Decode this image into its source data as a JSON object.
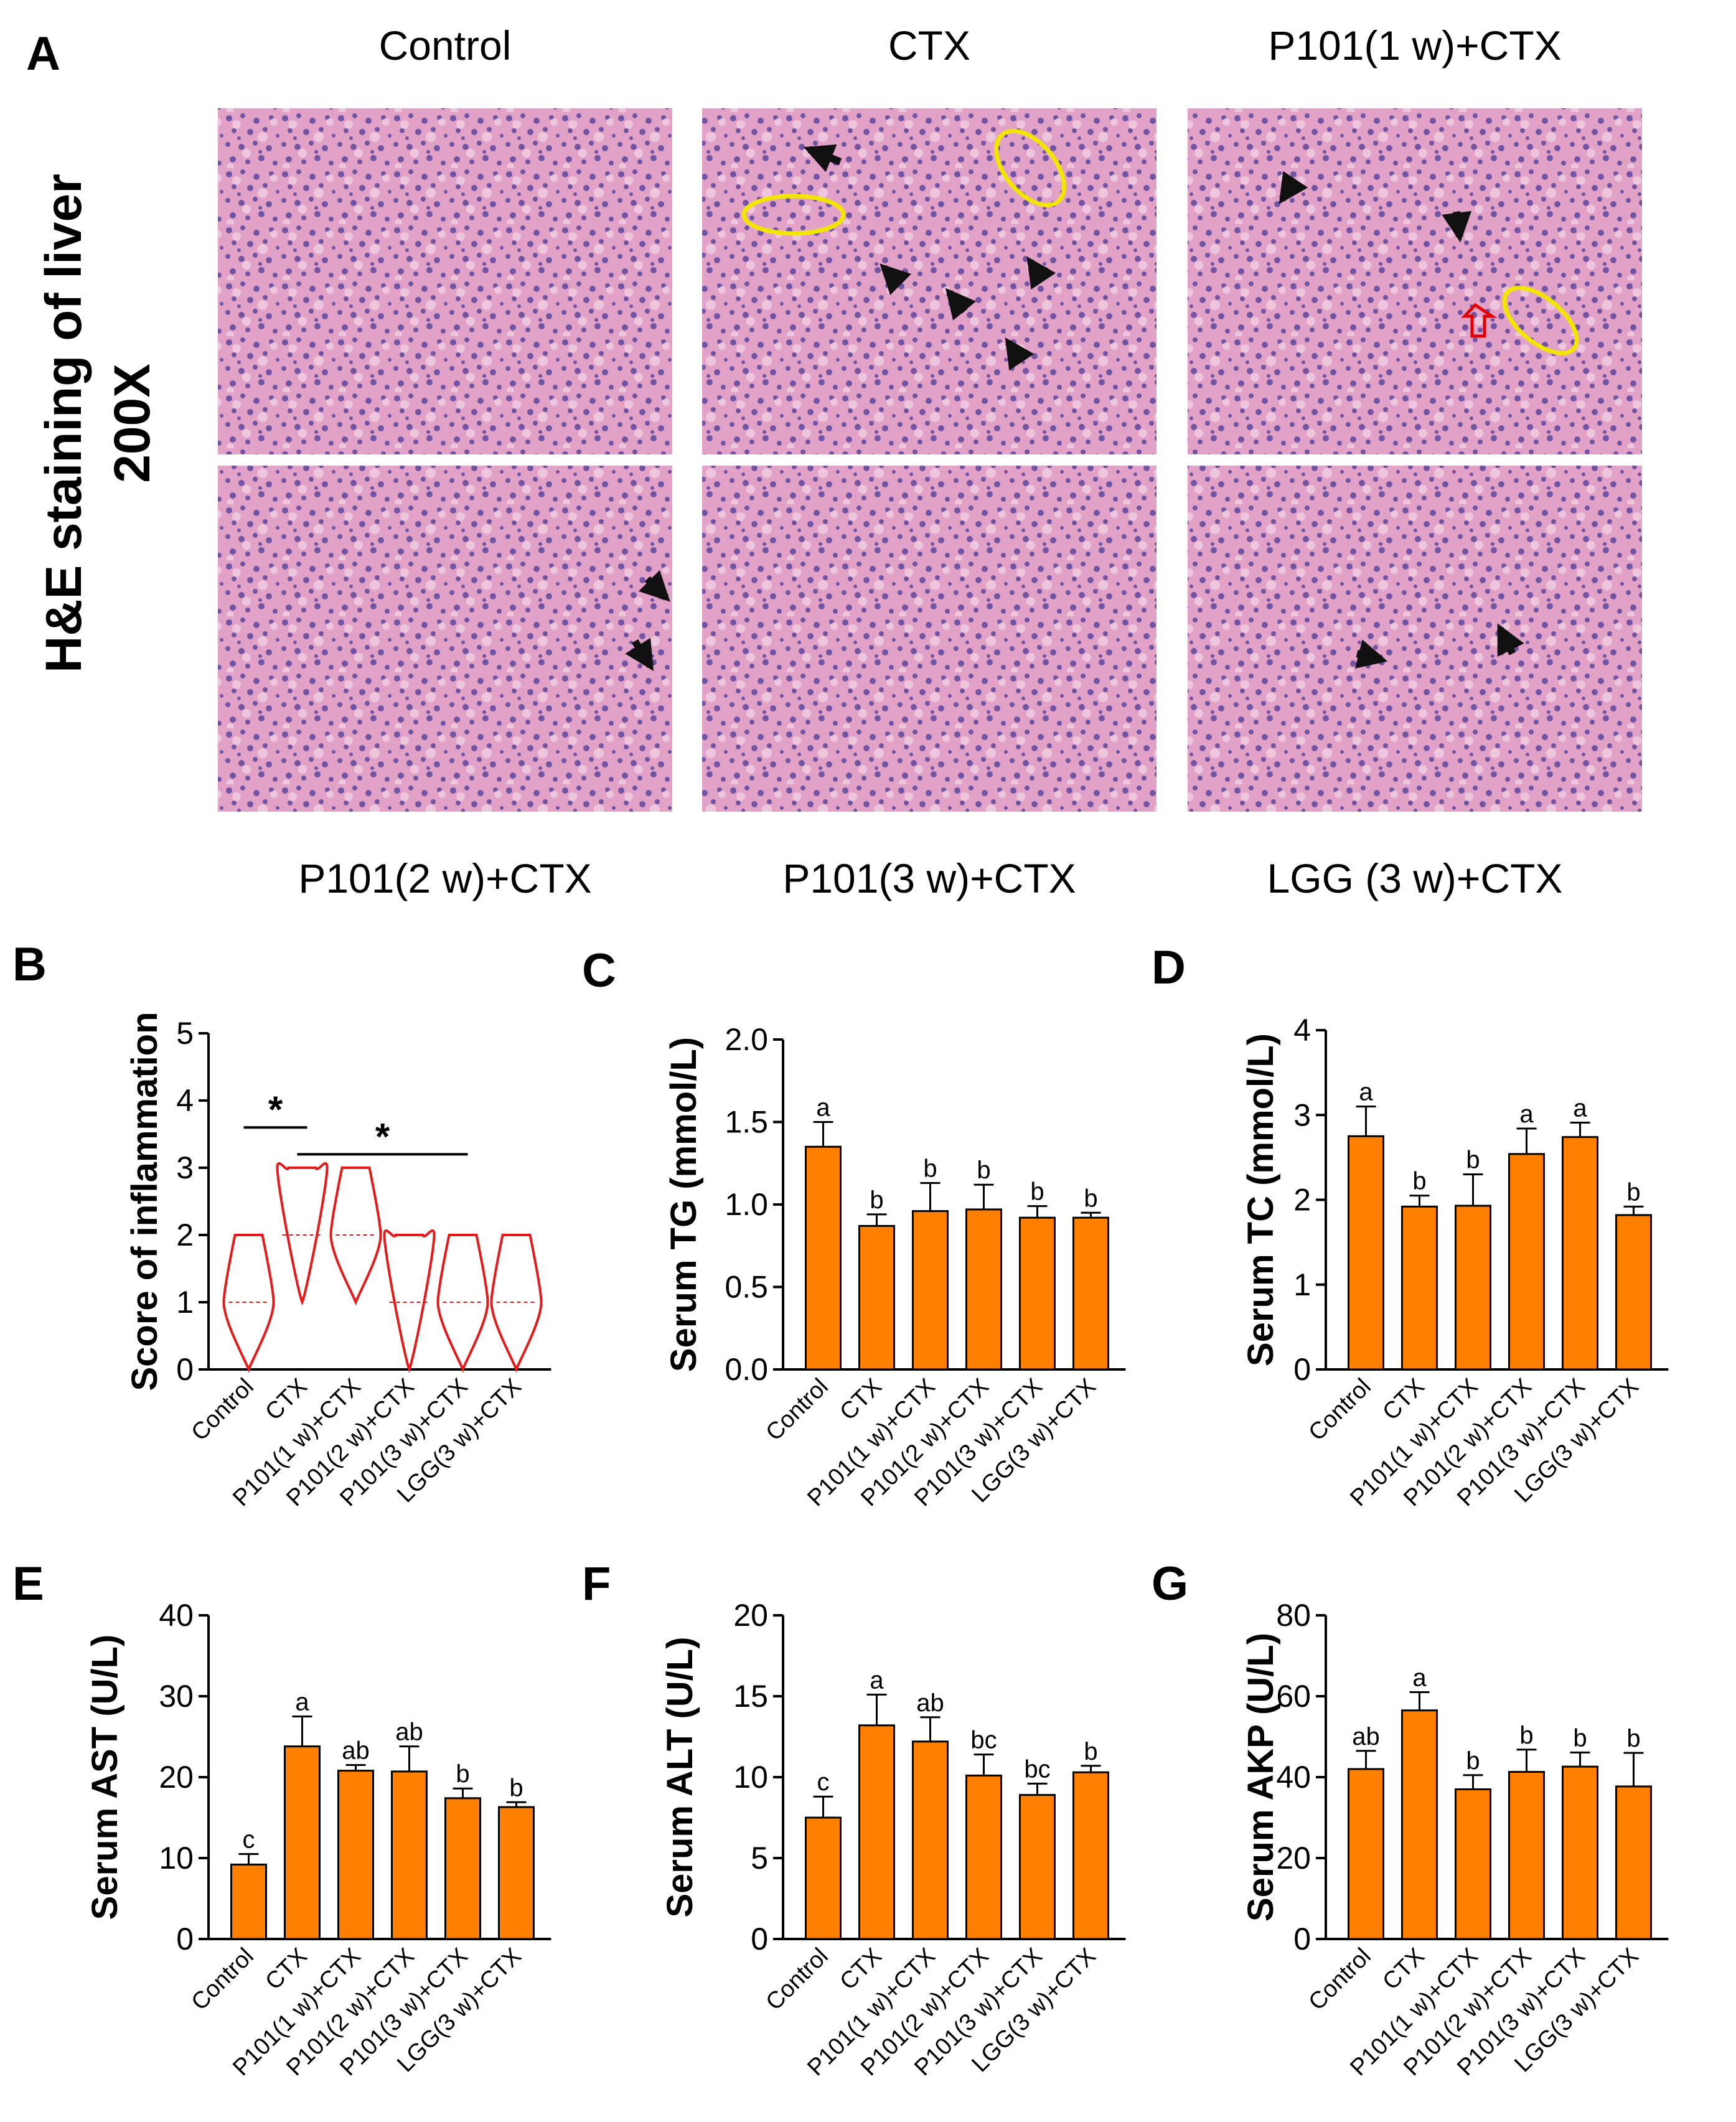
{
  "colors": {
    "bar": "#ff8000",
    "bar_stroke": "#000000",
    "violin": "#e51a1a",
    "arrow": "#111111",
    "circle": "#f2e600",
    "tissue_base": "#e2a2c8",
    "tissue_nuclei": "#4a3a95",
    "open_arrow": "#e00000"
  },
  "histology": {
    "panel_letter": "A",
    "side_title_line1": "H&E  staining of liver",
    "side_title_line2": "200X",
    "images": [
      {
        "title": "Control",
        "marks": {
          "arrows": [],
          "circles": [],
          "red_arrows": []
        }
      },
      {
        "title": "CTX",
        "marks": {
          "arrows": [
            "a1",
            "a2",
            "a3",
            "a4",
            "a5"
          ],
          "circles": [
            "c1",
            "c2"
          ],
          "red_arrows": []
        }
      },
      {
        "title": "P101(1 w)+CTX",
        "marks": {
          "arrows": [
            "a1",
            "a2"
          ],
          "circles": [
            "c1"
          ],
          "red_arrows": [
            "r1"
          ]
        }
      },
      {
        "title": "P101(2 w)+CTX",
        "marks": {
          "arrows": [
            "a1",
            "a2"
          ],
          "circles": [],
          "red_arrows": []
        }
      },
      {
        "title": "P101(3 w)+CTX",
        "marks": {
          "arrows": [],
          "circles": [],
          "red_arrows": []
        }
      },
      {
        "title": "LGG (3 w)+CTX",
        "marks": {
          "arrows": [
            "a1",
            "a2"
          ],
          "circles": [],
          "red_arrows": []
        }
      }
    ]
  },
  "chart_data": [
    {
      "panel": "B",
      "type": "violin",
      "ylabel": "Score of inflammation",
      "ylim": [
        0,
        5
      ],
      "yticks": [
        0,
        1,
        2,
        3,
        4,
        5
      ],
      "categories": [
        "Control",
        "CTX",
        "P101(1 w)+CTX",
        "P101(2 w)+CTX",
        "P101(3 w)+CTX",
        "LGG(3 w)+CTX"
      ],
      "violins": [
        {
          "min": 0,
          "max": 2,
          "median": 1,
          "mode": 1
        },
        {
          "min": 1,
          "max": 3,
          "median": 2,
          "mode": 3
        },
        {
          "min": 1,
          "max": 3,
          "median": 2,
          "mode": 2
        },
        {
          "min": 0,
          "max": 2,
          "median": 1,
          "mode": 2
        },
        {
          "min": 0,
          "max": 2,
          "median": 1,
          "mode": 1
        },
        {
          "min": 0,
          "max": 2,
          "median": 1,
          "mode": 1
        }
      ],
      "significance": [
        {
          "from": 0,
          "to": 1,
          "y": 3.6,
          "label": "*"
        },
        {
          "from": 1,
          "to": 4,
          "y": 3.2,
          "label": "*"
        }
      ]
    },
    {
      "panel": "C",
      "type": "bar",
      "ylabel": "Serum TG (mmol/L)",
      "ylim": [
        0,
        2.0
      ],
      "yticks": [
        "0.0",
        "0.5",
        "1.0",
        "1.5",
        "2.0"
      ],
      "categories": [
        "Control",
        "CTX",
        "P101(1 w)+CTX",
        "P101(2 w)+CTX",
        "P101(3 w)+CTX",
        "LGG(3 w)+CTX"
      ],
      "values": [
        1.35,
        0.87,
        0.96,
        0.97,
        0.92,
        0.92
      ],
      "errors": [
        0.15,
        0.07,
        0.17,
        0.15,
        0.07,
        0.03
      ],
      "letters": [
        "a",
        "b",
        "b",
        "b",
        "b",
        "b"
      ]
    },
    {
      "panel": "D",
      "type": "bar",
      "ylabel": "Serum TC (mmol/L)",
      "ylim": [
        0,
        4
      ],
      "yticks": [
        "0",
        "1",
        "2",
        "3",
        "4"
      ],
      "categories": [
        "Control",
        "CTX",
        "P101(1 w)+CTX",
        "P101(2 w)+CTX",
        "P101(3 w)+CTX",
        "LGG(3 w)+CTX"
      ],
      "values": [
        2.75,
        1.92,
        1.93,
        2.54,
        2.74,
        1.82
      ],
      "errors": [
        0.35,
        0.13,
        0.37,
        0.3,
        0.17,
        0.1
      ],
      "letters": [
        "a",
        "b",
        "b",
        "a",
        "a",
        "b"
      ]
    },
    {
      "panel": "E",
      "type": "bar",
      "ylabel": "Serum AST (U/L)",
      "ylim": [
        0,
        40
      ],
      "yticks": [
        "0",
        "10",
        "20",
        "30",
        "40"
      ],
      "categories": [
        "Control",
        "CTX",
        "P101(1 w)+CTX",
        "P101(2 w)+CTX",
        "P101(3 w)+CTX",
        "LGG(3 w)+CTX"
      ],
      "values": [
        9.2,
        23.8,
        20.8,
        20.7,
        17.4,
        16.3
      ],
      "errors": [
        1.3,
        3.7,
        0.7,
        3.1,
        1.2,
        0.6
      ],
      "letters": [
        "c",
        "a",
        "ab",
        "ab",
        "b",
        "b"
      ]
    },
    {
      "panel": "F",
      "type": "bar",
      "ylabel": "Serum ALT (U/L)",
      "ylim": [
        0,
        20
      ],
      "yticks": [
        "0",
        "5",
        "10",
        "15",
        "20"
      ],
      "categories": [
        "Control",
        "CTX",
        "P101(1 w)+CTX",
        "P101(2 w)+CTX",
        "P101(3 w)+CTX",
        "LGG(3 w)+CTX"
      ],
      "values": [
        7.5,
        13.2,
        12.2,
        10.1,
        8.9,
        10.3
      ],
      "errors": [
        1.3,
        1.9,
        1.5,
        1.3,
        0.7,
        0.4
      ],
      "letters": [
        "c",
        "a",
        "ab",
        "bc",
        "bc",
        "b"
      ]
    },
    {
      "panel": "G",
      "type": "bar",
      "ylabel": "Serum AKP (U/L)",
      "ylim": [
        0,
        80
      ],
      "yticks": [
        "0",
        "20",
        "40",
        "60",
        "80"
      ],
      "categories": [
        "Control",
        "CTX",
        "P101(1 w)+CTX",
        "P101(2 w)+CTX",
        "P101(3 w)+CTX",
        "LGG(3 w)+CTX"
      ],
      "values": [
        42,
        56.5,
        37,
        41.3,
        42.6,
        37.7
      ],
      "errors": [
        4.5,
        4.5,
        3.5,
        5.5,
        3.5,
        8.3
      ],
      "letters": [
        "ab",
        "a",
        "b",
        "b",
        "b",
        "b"
      ]
    }
  ]
}
